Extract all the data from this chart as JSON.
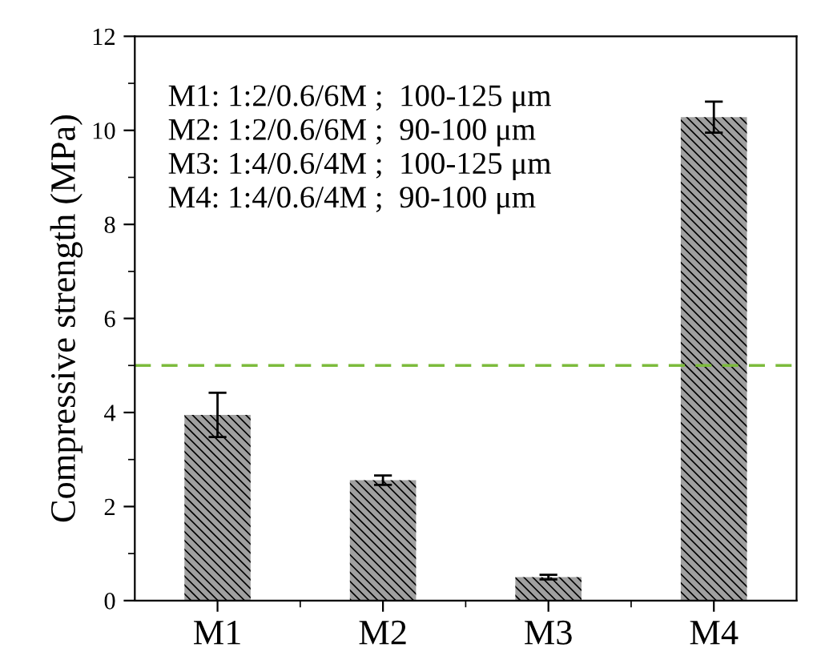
{
  "chart_data": {
    "type": "bar",
    "ylabel": "Compressive strength (MPa)",
    "categories": [
      "M1",
      "M2",
      "M3",
      "M4"
    ],
    "values": [
      3.95,
      2.56,
      0.5,
      10.28
    ],
    "errors": [
      0.47,
      0.1,
      0.05,
      0.33
    ],
    "color": "#a0a0a0",
    "ylim": [
      0,
      12
    ],
    "yticks": [
      0,
      2,
      4,
      6,
      8,
      10,
      12
    ],
    "grid": false,
    "legend": false,
    "ref_lines": [
      {
        "axis": "y",
        "value": 5,
        "color": "#7cbb3c",
        "line_style": "dashed"
      }
    ],
    "annotations": [
      "M1: 1:2/0.6/6M ;  100-125 μm",
      "M2: 1:2/0.6/6M ;  90-100 μm",
      "M3: 1:4/0.6/4M ;  100-125 μm",
      "M4: 1:4/0.6/4M ;  90-100 μm"
    ]
  }
}
